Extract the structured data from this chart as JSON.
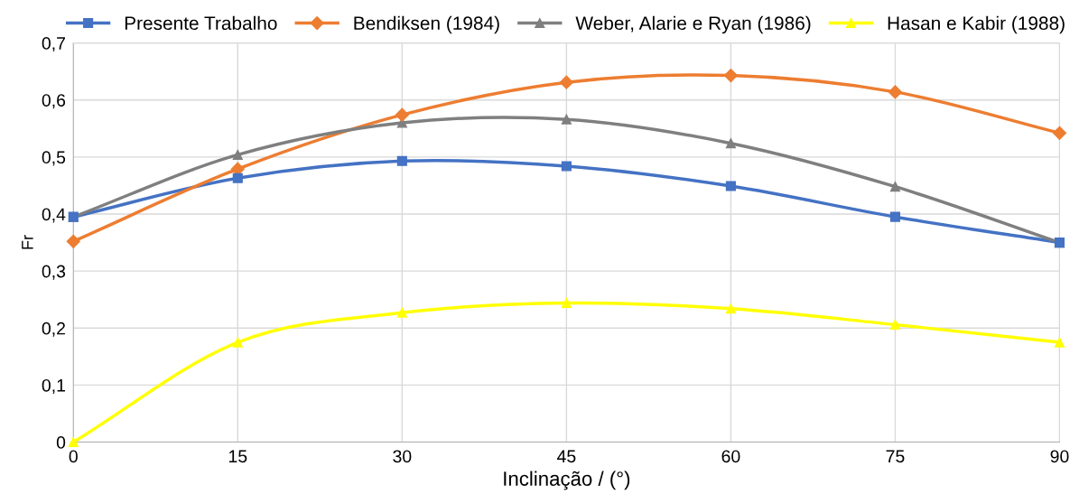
{
  "chart_data": {
    "type": "line",
    "xlabel": "Inclinação / (°)",
    "ylabel": "Fr",
    "x": [
      0,
      15,
      30,
      45,
      60,
      75,
      90
    ],
    "series": [
      {
        "name": "Presente Trabalho",
        "color": "#4472c4",
        "marker": "square",
        "values": [
          0.395,
          0.463,
          0.493,
          0.484,
          0.449,
          0.395,
          0.35
        ]
      },
      {
        "name": "Bendiksen (1984)",
        "color": "#ed7d31",
        "marker": "diamond",
        "values": [
          0.352,
          0.479,
          0.574,
          0.631,
          0.643,
          0.614,
          0.542
        ]
      },
      {
        "name": "Weber, Alarie e Ryan (1986)",
        "color": "#7f7f7f",
        "marker": "triangle",
        "values": [
          0.395,
          0.504,
          0.56,
          0.566,
          0.524,
          0.448,
          0.35
        ]
      },
      {
        "name": "Hasan e Kabir (1988)",
        "color": "#ffff00",
        "marker": "triangle",
        "values": [
          0,
          0.175,
          0.227,
          0.244,
          0.234,
          0.206,
          0.175
        ]
      }
    ],
    "xlim": [
      0,
      90
    ],
    "xticks": [
      0,
      15,
      30,
      45,
      60,
      75,
      90
    ],
    "ylim": [
      0,
      0.7
    ],
    "yticks": [
      0,
      {
        "value": 0.1,
        "label": "0,1"
      },
      {
        "value": 0.2,
        "label": "0,2"
      },
      {
        "value": 0.3,
        "label": "0,3"
      },
      {
        "value": 0.4,
        "label": "0,4"
      },
      {
        "value": 0.5,
        "label": "0,5"
      },
      {
        "value": 0.6,
        "label": "0,6"
      },
      {
        "value": 0.7,
        "label": "0,7"
      }
    ],
    "grid": true,
    "legend": "top",
    "line_style": "solid"
  }
}
